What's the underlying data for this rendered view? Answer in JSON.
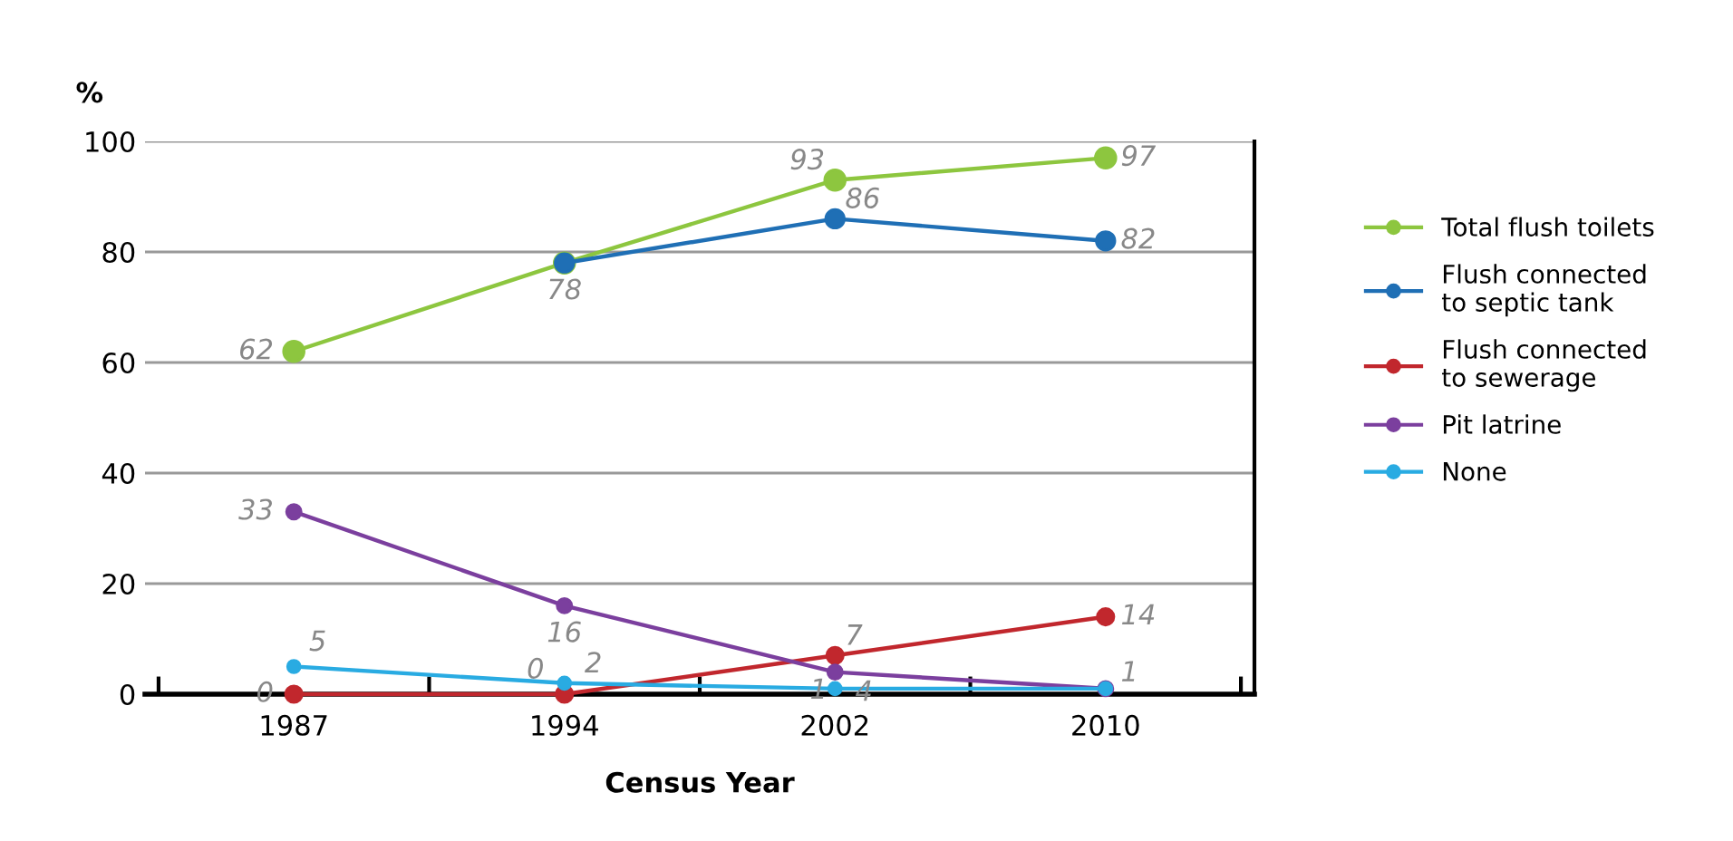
{
  "chart_data": {
    "type": "line",
    "ylabel": "%",
    "xlabel": "Census Year",
    "categories": [
      "1987",
      "1994",
      "2002",
      "2010"
    ],
    "series": [
      {
        "name": "Total flush toilets",
        "color": "#8dc63f",
        "values": [
          62,
          78,
          93,
          97
        ],
        "value_labels": [
          "62",
          "78",
          "93",
          "97"
        ]
      },
      {
        "name": "Flush connected\nto septic tank",
        "color": "#1f6fb5",
        "values": [
          null,
          78,
          86,
          82
        ],
        "value_labels": [
          null,
          null,
          "86",
          "82"
        ]
      },
      {
        "name": "Flush connected\nto sewerage",
        "color": "#c1272d",
        "values": [
          0,
          0,
          7,
          14
        ],
        "value_labels": [
          "0",
          "0",
          "7",
          "14"
        ]
      },
      {
        "name": "Pit latrine",
        "color": "#7b3f9e",
        "values": [
          33,
          16,
          4,
          1
        ],
        "value_labels": [
          "33",
          "16",
          "4",
          null
        ]
      },
      {
        "name": "None",
        "color": "#29abe2",
        "values": [
          5,
          2,
          1,
          1
        ],
        "value_labels": [
          "5",
          "2",
          "1",
          "1"
        ]
      }
    ],
    "ylim": [
      0,
      100
    ],
    "yticks": [
      0,
      20,
      40,
      60,
      80,
      100
    ],
    "grid": "y",
    "legend": "right",
    "marker": "circle",
    "line_style": "solid"
  }
}
